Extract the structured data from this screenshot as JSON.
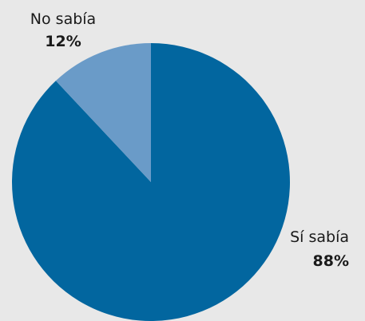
{
  "chart_data": {
    "type": "pie",
    "slices": [
      {
        "label": "Sí sabía",
        "value": 88,
        "display": "88%",
        "color": "#02669f"
      },
      {
        "label": "No sabía",
        "value": 12,
        "display": "12%",
        "color": "#6a9bc8"
      }
    ],
    "start_angle": "12 o'clock",
    "direction": "clockwise",
    "legend": "none"
  }
}
